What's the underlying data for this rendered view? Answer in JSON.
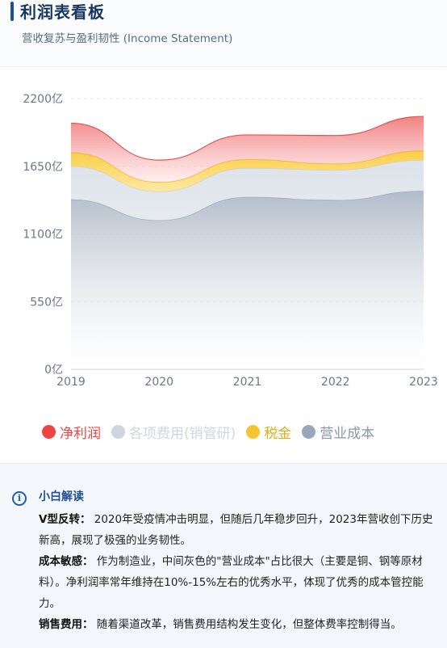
{
  "header": {
    "title": "利润表看板",
    "subtitle": "营收复苏与盈利韧性 (Income Statement)"
  },
  "chart_data": {
    "type": "area",
    "stacked": true,
    "categories": [
      "2019",
      "2020",
      "2021",
      "2022",
      "2023"
    ],
    "yTicks": [
      "0亿",
      "550亿",
      "1100亿",
      "1650亿",
      "2200亿"
    ],
    "ylim": [
      0,
      2200
    ],
    "grid": true,
    "legend_position": "bottom-left",
    "series": [
      {
        "name": "营业成本",
        "color": "#9aa7b8",
        "values": [
          1380,
          1210,
          1400,
          1375,
          1450
        ]
      },
      {
        "name": "各项费用(销管研)",
        "color": "#cdd5de",
        "values": [
          270,
          235,
          235,
          245,
          250
        ]
      },
      {
        "name": "税金",
        "color": "#f7c531",
        "values": [
          110,
          75,
          70,
          50,
          75
        ]
      },
      {
        "name": "净利润",
        "color": "#ef4444",
        "values": [
          240,
          180,
          200,
          230,
          280
        ]
      }
    ]
  },
  "legend": {
    "items": [
      {
        "label": "净利润",
        "color": "#ef4444",
        "textColor": "#ef4444"
      },
      {
        "label": "各项费用(销管研)",
        "color": "#cdd5de",
        "textColor": "#cfd6df"
      },
      {
        "label": "税金",
        "color": "#f7c531",
        "textColor": "#e0ac18"
      },
      {
        "label": "营业成本",
        "color": "#9aa7b8",
        "textColor": "#8a97a8"
      }
    ]
  },
  "insight": {
    "title": "小白解读",
    "items": [
      {
        "label": "V型反转：",
        "text": "2020年受疫情冲击明显，但随后几年稳步回升，2023年营收创下历史新高，展现了极强的业务韧性。"
      },
      {
        "label": "成本敏感：",
        "text": "作为制造业，中间灰色的\"营业成本\"占比很大（主要是铜、钢等原材料）。净利润率常年维持在10%-15%左右的优秀水平，体现了优秀的成本管控能力。"
      },
      {
        "label": "销售费用：",
        "text": "随着渠道改革，销售费用结构发生变化，但整体费率控制得当。"
      }
    ]
  }
}
